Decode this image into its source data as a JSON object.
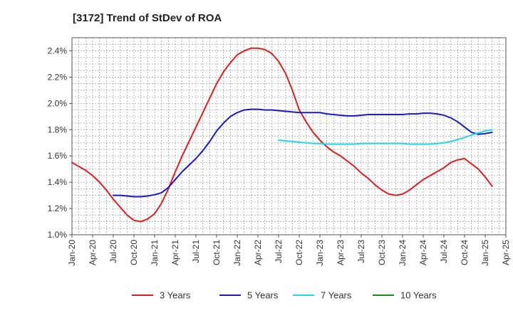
{
  "chart_data": {
    "type": "line",
    "title": "[3172]  Trend of StDev of ROA",
    "xlabel": "",
    "ylabel": "",
    "x_ticks": [
      "Jan-20",
      "Apr-20",
      "Jul-20",
      "Oct-20",
      "Jan-21",
      "Apr-21",
      "Jul-21",
      "Oct-21",
      "Jan-22",
      "Apr-22",
      "Jul-22",
      "Oct-22",
      "Jan-23",
      "Apr-23",
      "Jul-23",
      "Oct-23",
      "Jan-24",
      "Apr-24",
      "Jul-24",
      "Oct-24",
      "Jan-25",
      "Apr-25"
    ],
    "y_ticks": [
      "1.0%",
      "1.2%",
      "1.4%",
      "1.6%",
      "1.8%",
      "2.0%",
      "2.2%",
      "2.4%"
    ],
    "ylim": [
      1.0,
      2.5
    ],
    "y_unit": "%",
    "grid": true,
    "legend_position": "bottom",
    "series": [
      {
        "name": "3 Years",
        "color": "#dd1f1f",
        "points": [
          [
            "Jan-20",
            1.55
          ],
          [
            "Feb-20",
            1.52
          ],
          [
            "Mar-20",
            1.49
          ],
          [
            "Apr-20",
            1.45
          ],
          [
            "May-20",
            1.4
          ],
          [
            "Jun-20",
            1.34
          ],
          [
            "Jul-20",
            1.27
          ],
          [
            "Aug-20",
            1.21
          ],
          [
            "Sep-20",
            1.15
          ],
          [
            "Oct-20",
            1.11
          ],
          [
            "Nov-20",
            1.1
          ],
          [
            "Dec-20",
            1.12
          ],
          [
            "Jan-21",
            1.16
          ],
          [
            "Feb-21",
            1.24
          ],
          [
            "Mar-21",
            1.35
          ],
          [
            "Apr-21",
            1.48
          ],
          [
            "May-21",
            1.6
          ],
          [
            "Jun-21",
            1.71
          ],
          [
            "Jul-21",
            1.82
          ],
          [
            "Aug-21",
            1.93
          ],
          [
            "Sep-21",
            2.04
          ],
          [
            "Oct-21",
            2.15
          ],
          [
            "Nov-21",
            2.24
          ],
          [
            "Dec-21",
            2.31
          ],
          [
            "Jan-22",
            2.37
          ],
          [
            "Feb-22",
            2.4
          ],
          [
            "Mar-22",
            2.42
          ],
          [
            "Apr-22",
            2.42
          ],
          [
            "May-22",
            2.41
          ],
          [
            "Jun-22",
            2.38
          ],
          [
            "Jul-22",
            2.32
          ],
          [
            "Aug-22",
            2.23
          ],
          [
            "Sep-22",
            2.1
          ],
          [
            "Oct-22",
            1.95
          ],
          [
            "Nov-22",
            1.86
          ],
          [
            "Dec-22",
            1.78
          ],
          [
            "Jan-23",
            1.72
          ],
          [
            "Feb-23",
            1.67
          ],
          [
            "Mar-23",
            1.63
          ],
          [
            "Apr-23",
            1.6
          ],
          [
            "May-23",
            1.56
          ],
          [
            "Jun-23",
            1.52
          ],
          [
            "Jul-23",
            1.47
          ],
          [
            "Aug-23",
            1.43
          ],
          [
            "Sep-23",
            1.38
          ],
          [
            "Oct-23",
            1.34
          ],
          [
            "Nov-23",
            1.31
          ],
          [
            "Dec-23",
            1.3
          ],
          [
            "Jan-24",
            1.31
          ],
          [
            "Feb-24",
            1.34
          ],
          [
            "Mar-24",
            1.38
          ],
          [
            "Apr-24",
            1.42
          ],
          [
            "May-24",
            1.45
          ],
          [
            "Jun-24",
            1.48
          ],
          [
            "Jul-24",
            1.51
          ],
          [
            "Aug-24",
            1.55
          ],
          [
            "Sep-24",
            1.57
          ],
          [
            "Oct-24",
            1.58
          ],
          [
            "Nov-24",
            1.54
          ],
          [
            "Dec-24",
            1.5
          ],
          [
            "Jan-25",
            1.44
          ],
          [
            "Feb-25",
            1.37
          ]
        ]
      },
      {
        "name": "5 Years",
        "color": "#1a1ac8",
        "points": [
          [
            "Jul-20",
            1.3
          ],
          [
            "Aug-20",
            1.3
          ],
          [
            "Sep-20",
            1.295
          ],
          [
            "Oct-20",
            1.29
          ],
          [
            "Nov-20",
            1.29
          ],
          [
            "Dec-20",
            1.295
          ],
          [
            "Jan-21",
            1.305
          ],
          [
            "Feb-21",
            1.32
          ],
          [
            "Mar-21",
            1.36
          ],
          [
            "Apr-21",
            1.42
          ],
          [
            "May-21",
            1.48
          ],
          [
            "Jun-21",
            1.53
          ],
          [
            "Jul-21",
            1.58
          ],
          [
            "Aug-21",
            1.64
          ],
          [
            "Sep-21",
            1.71
          ],
          [
            "Oct-21",
            1.79
          ],
          [
            "Nov-21",
            1.85
          ],
          [
            "Dec-21",
            1.9
          ],
          [
            "Jan-22",
            1.93
          ],
          [
            "Feb-22",
            1.95
          ],
          [
            "Mar-22",
            1.955
          ],
          [
            "Apr-22",
            1.955
          ],
          [
            "May-22",
            1.95
          ],
          [
            "Jun-22",
            1.95
          ],
          [
            "Jul-22",
            1.945
          ],
          [
            "Aug-22",
            1.94
          ],
          [
            "Sep-22",
            1.935
          ],
          [
            "Oct-22",
            1.93
          ],
          [
            "Nov-22",
            1.93
          ],
          [
            "Dec-22",
            1.93
          ],
          [
            "Jan-23",
            1.93
          ],
          [
            "Feb-23",
            1.92
          ],
          [
            "Mar-23",
            1.915
          ],
          [
            "Apr-23",
            1.91
          ],
          [
            "May-23",
            1.905
          ],
          [
            "Jun-23",
            1.905
          ],
          [
            "Jul-23",
            1.91
          ],
          [
            "Aug-23",
            1.915
          ],
          [
            "Sep-23",
            1.915
          ],
          [
            "Oct-23",
            1.915
          ],
          [
            "Nov-23",
            1.915
          ],
          [
            "Dec-23",
            1.915
          ],
          [
            "Jan-24",
            1.915
          ],
          [
            "Feb-24",
            1.92
          ],
          [
            "Mar-24",
            1.92
          ],
          [
            "Apr-24",
            1.925
          ],
          [
            "May-24",
            1.925
          ],
          [
            "Jun-24",
            1.92
          ],
          [
            "Jul-24",
            1.91
          ],
          [
            "Aug-24",
            1.89
          ],
          [
            "Sep-24",
            1.86
          ],
          [
            "Oct-24",
            1.82
          ],
          [
            "Nov-24",
            1.78
          ],
          [
            "Dec-24",
            1.765
          ],
          [
            "Jan-25",
            1.77
          ],
          [
            "Feb-25",
            1.78
          ]
        ]
      },
      {
        "name": "7 Years",
        "color": "#22d8e6",
        "points": [
          [
            "Jul-22",
            1.72
          ],
          [
            "Aug-22",
            1.715
          ],
          [
            "Sep-22",
            1.71
          ],
          [
            "Oct-22",
            1.705
          ],
          [
            "Nov-22",
            1.7
          ],
          [
            "Dec-22",
            1.695
          ],
          [
            "Jan-23",
            1.695
          ],
          [
            "Feb-23",
            1.69
          ],
          [
            "Mar-23",
            1.69
          ],
          [
            "Apr-23",
            1.69
          ],
          [
            "May-23",
            1.69
          ],
          [
            "Jun-23",
            1.69
          ],
          [
            "Jul-23",
            1.695
          ],
          [
            "Aug-23",
            1.695
          ],
          [
            "Sep-23",
            1.695
          ],
          [
            "Oct-23",
            1.695
          ],
          [
            "Nov-23",
            1.695
          ],
          [
            "Dec-23",
            1.695
          ],
          [
            "Jan-24",
            1.695
          ],
          [
            "Feb-24",
            1.69
          ],
          [
            "Mar-24",
            1.69
          ],
          [
            "Apr-24",
            1.69
          ],
          [
            "May-24",
            1.69
          ],
          [
            "Jun-24",
            1.695
          ],
          [
            "Jul-24",
            1.7
          ],
          [
            "Aug-24",
            1.71
          ],
          [
            "Sep-24",
            1.725
          ],
          [
            "Oct-24",
            1.74
          ],
          [
            "Nov-24",
            1.76
          ],
          [
            "Dec-24",
            1.775
          ],
          [
            "Jan-25",
            1.79
          ],
          [
            "Feb-25",
            1.8
          ]
        ]
      },
      {
        "name": "10 Years",
        "color": "#1a8a1a",
        "points": []
      }
    ]
  }
}
